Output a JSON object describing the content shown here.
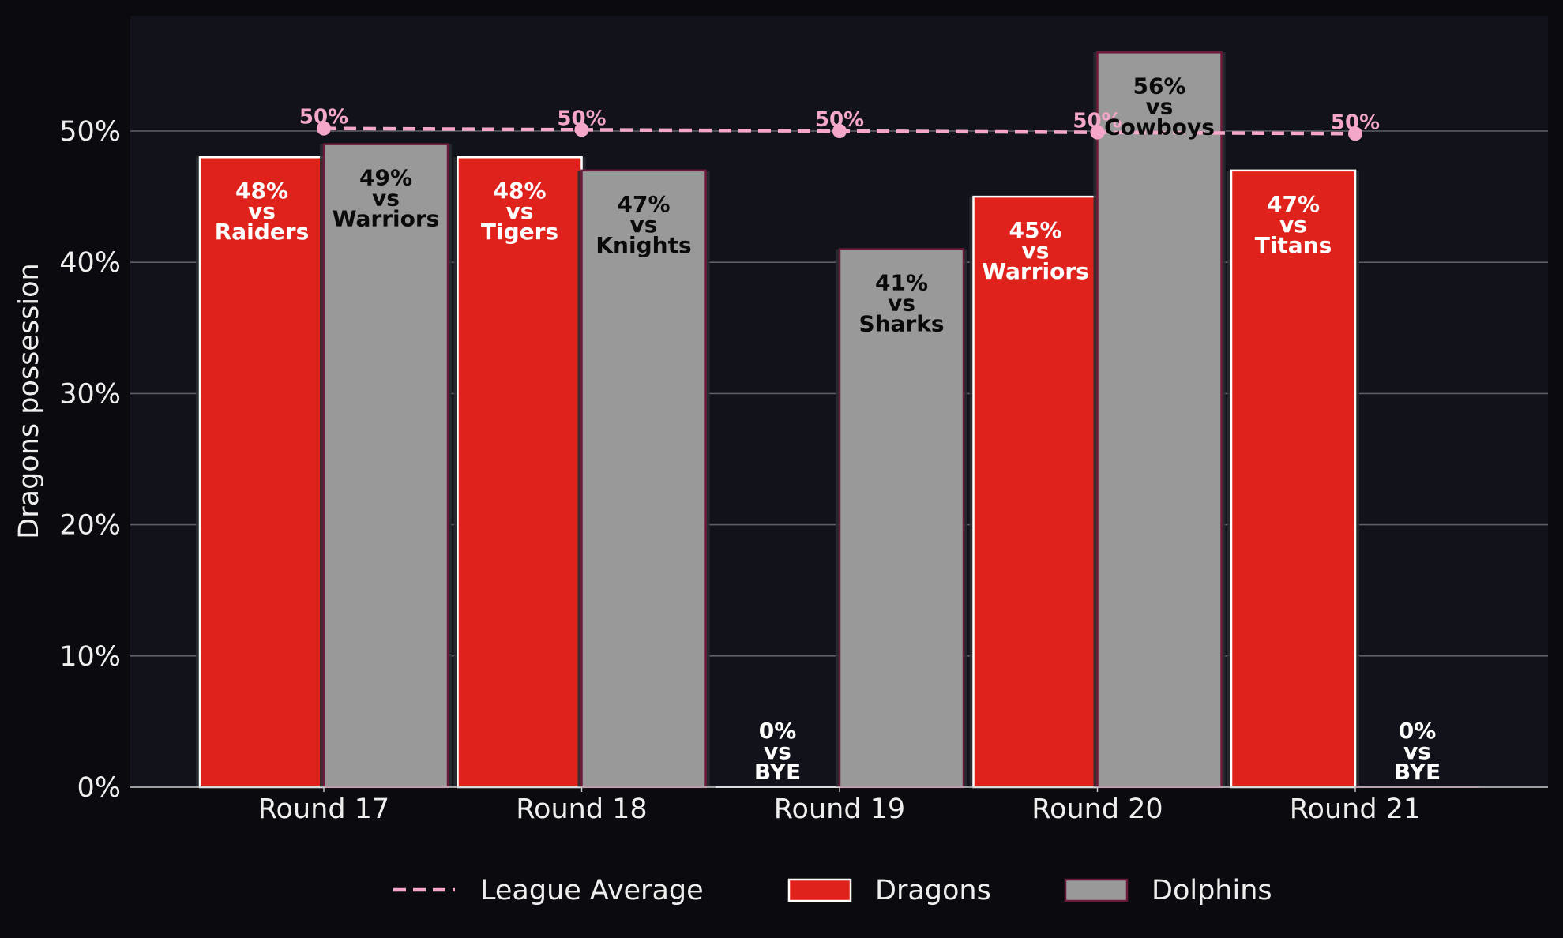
{
  "chart_data": {
    "type": "bar",
    "title": "",
    "xlabel": "",
    "ylabel": "Dragons possession",
    "ylim": [
      0,
      59
    ],
    "yticks": [
      "0%",
      "10%",
      "20%",
      "30%",
      "40%",
      "50%"
    ],
    "ytick_values": [
      0,
      10,
      20,
      30,
      40,
      50
    ],
    "grid": "horizontal",
    "legend_placement": "bottom-center",
    "categories": [
      "Round 17",
      "Round 18",
      "Round 19",
      "Round 20",
      "Round 21"
    ],
    "series": [
      {
        "name": "Dragons",
        "color": "#e0221c",
        "values": [
          48,
          48,
          0,
          45,
          47
        ],
        "labels": [
          [
            "48%",
            "vs",
            "Raiders"
          ],
          [
            "48%",
            "vs",
            "Tigers"
          ],
          [
            "0%",
            "vs",
            "BYE"
          ],
          [
            "45%",
            "vs",
            "Warriors"
          ],
          [
            "47%",
            "vs",
            "Titans"
          ]
        ]
      },
      {
        "name": "Dolphins",
        "color": "#999999",
        "values": [
          49,
          47,
          41,
          56,
          0
        ],
        "labels": [
          [
            "49%",
            "vs",
            "Warriors"
          ],
          [
            "47%",
            "vs",
            "Knights"
          ],
          [
            "41%",
            "vs",
            "Sharks"
          ],
          [
            "56%",
            "vs",
            "Cowboys"
          ],
          [
            "0%",
            "vs",
            "BYE"
          ]
        ]
      }
    ],
    "league_average": {
      "name": "League Average",
      "color": "#f4a7c8",
      "values": [
        50.2,
        50.1,
        50.0,
        49.9,
        49.8
      ],
      "labels": [
        "50%",
        "50%",
        "50%",
        "50%",
        "50%"
      ]
    }
  },
  "colors": {
    "background": "#0b0b0f",
    "plot_background": "#12131a",
    "gridline": "#5e5f66",
    "axis_text": "#eeeeee",
    "dolphins_edge": "#6b1a3a",
    "dragons_edge": "#ffffff"
  }
}
